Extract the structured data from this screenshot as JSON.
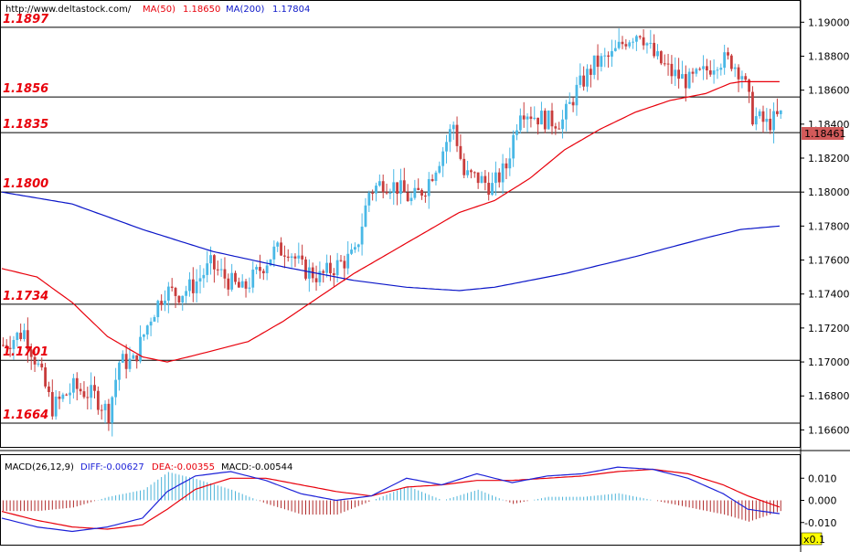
{
  "header": {
    "url": "http://www.deltastock.com/",
    "ma50_label": "MA(50)",
    "ma50_value": "1.18650",
    "ma200_label": "MA(200)",
    "ma200_value": "1.17804"
  },
  "macd_header": {
    "title": "MACD(26,12,9)",
    "diff": "DIFF:-0.00627",
    "dea": "DEA:-0.00355",
    "macd": "MACD:-0.00544",
    "scale_badge": "x0.1"
  },
  "colors": {
    "bull": "#49b8e6",
    "bear": "#c83c3c",
    "ma50": "#e8000b",
    "ma200": "#0b16c8",
    "level_text": "#e8000b",
    "diff": "#1d22d8",
    "dea": "#e8000b",
    "hist_pos": "#4ab3d9",
    "hist_neg": "#b02a2a",
    "price_box": "#d25a5a",
    "badge": "#ffff00"
  },
  "chart_data": {
    "type": "candlestick",
    "price_axis": {
      "ylim": [
        1.165,
        1.1912
      ],
      "ticks": [
        "1.16600",
        "1.16800",
        "1.17000",
        "1.17200",
        "1.17400",
        "1.17600",
        "1.17800",
        "1.18000",
        "1.18200",
        "1.18400",
        "1.18600",
        "1.18800",
        "1.19000"
      ]
    },
    "last_price": "1.18461",
    "levels": [
      {
        "label": "1.1897",
        "value": 1.1897
      },
      {
        "label": "1.1856",
        "value": 1.1856
      },
      {
        "label": "1.1835",
        "value": 1.1835
      },
      {
        "label": "1.1800",
        "value": 1.18
      },
      {
        "label": "1.1734",
        "value": 1.1734
      },
      {
        "label": "1.1701",
        "value": 1.1701
      },
      {
        "label": "1.1664",
        "value": 1.1664
      }
    ],
    "anchors": [
      [
        0,
        1.171
      ],
      [
        6,
        1.1718
      ],
      [
        10,
        1.1697
      ],
      [
        14,
        1.1673
      ],
      [
        20,
        1.1685
      ],
      [
        26,
        1.168
      ],
      [
        30,
        1.167
      ],
      [
        33,
        1.17
      ],
      [
        37,
        1.17
      ],
      [
        42,
        1.1727
      ],
      [
        46,
        1.1742
      ],
      [
        50,
        1.174
      ],
      [
        54,
        1.1745
      ],
      [
        59,
        1.1757
      ],
      [
        64,
        1.1748
      ],
      [
        68,
        1.1742
      ],
      [
        72,
        1.1752
      ],
      [
        77,
        1.1765
      ],
      [
        81,
        1.1767
      ],
      [
        85,
        1.1755
      ],
      [
        90,
        1.175
      ],
      [
        95,
        1.1757
      ],
      [
        100,
        1.1763
      ],
      [
        104,
        1.18
      ],
      [
        108,
        1.1806
      ],
      [
        112,
        1.1803
      ],
      [
        116,
        1.1795
      ],
      [
        120,
        1.1803
      ],
      [
        124,
        1.182
      ],
      [
        128,
        1.184
      ],
      [
        131,
        1.181
      ],
      [
        135,
        1.1808
      ],
      [
        139,
        1.1803
      ],
      [
        143,
        1.1815
      ],
      [
        147,
        1.185
      ],
      [
        151,
        1.1845
      ],
      [
        155,
        1.1842
      ],
      [
        159,
        1.1842
      ],
      [
        163,
        1.186
      ],
      [
        168,
        1.1875
      ],
      [
        173,
        1.188
      ],
      [
        177,
        1.189
      ],
      [
        181,
        1.1895
      ],
      [
        185,
        1.188
      ],
      [
        190,
        1.187
      ],
      [
        195,
        1.1865
      ],
      [
        199,
        1.187
      ],
      [
        203,
        1.1878
      ],
      [
        207,
        1.1877
      ],
      [
        210,
        1.187
      ],
      [
        213,
        1.1845
      ],
      [
        217,
        1.184
      ],
      [
        221,
        1.1845
      ]
    ],
    "ma50": [
      [
        0,
        1.1755
      ],
      [
        10,
        1.175
      ],
      [
        20,
        1.1735
      ],
      [
        30,
        1.1715
      ],
      [
        40,
        1.1703
      ],
      [
        47,
        1.17
      ],
      [
        55,
        1.1704
      ],
      [
        70,
        1.1712
      ],
      [
        80,
        1.1724
      ],
      [
        90,
        1.1738
      ],
      [
        100,
        1.1752
      ],
      [
        110,
        1.1764
      ],
      [
        120,
        1.1776
      ],
      [
        130,
        1.1788
      ],
      [
        140,
        1.1795
      ],
      [
        150,
        1.1808
      ],
      [
        160,
        1.1825
      ],
      [
        170,
        1.1837
      ],
      [
        180,
        1.1847
      ],
      [
        190,
        1.1854
      ],
      [
        200,
        1.1858
      ],
      [
        207,
        1.1864
      ],
      [
        210,
        1.1865
      ],
      [
        216,
        1.1865
      ],
      [
        221,
        1.1865
      ]
    ],
    "ma200": [
      [
        0,
        1.18
      ],
      [
        20,
        1.1793
      ],
      [
        40,
        1.1778
      ],
      [
        60,
        1.1765
      ],
      [
        80,
        1.1756
      ],
      [
        100,
        1.1748
      ],
      [
        115,
        1.1744
      ],
      [
        130,
        1.1742
      ],
      [
        140,
        1.1744
      ],
      [
        160,
        1.1752
      ],
      [
        180,
        1.1762
      ],
      [
        200,
        1.1773
      ],
      [
        210,
        1.1778
      ],
      [
        221,
        1.178
      ]
    ],
    "macd": {
      "ylim": [
        -0.02,
        0.02
      ],
      "ticks": [
        "0.010",
        "0.000",
        "-0.010"
      ],
      "diff": [
        [
          0,
          -0.008
        ],
        [
          10,
          -0.012
        ],
        [
          20,
          -0.014
        ],
        [
          30,
          -0.012
        ],
        [
          40,
          -0.008
        ],
        [
          47,
          0.004
        ],
        [
          55,
          0.011
        ],
        [
          65,
          0.013
        ],
        [
          75,
          0.009
        ],
        [
          85,
          0.003
        ],
        [
          95,
          0.0
        ],
        [
          105,
          0.002
        ],
        [
          115,
          0.01
        ],
        [
          125,
          0.007
        ],
        [
          135,
          0.012
        ],
        [
          145,
          0.008
        ],
        [
          155,
          0.011
        ],
        [
          165,
          0.012
        ],
        [
          175,
          0.015
        ],
        [
          185,
          0.014
        ],
        [
          195,
          0.01
        ],
        [
          205,
          0.003
        ],
        [
          212,
          -0.004
        ],
        [
          221,
          -0.006
        ]
      ],
      "dea": [
        [
          0,
          -0.005
        ],
        [
          10,
          -0.009
        ],
        [
          20,
          -0.012
        ],
        [
          30,
          -0.013
        ],
        [
          40,
          -0.011
        ],
        [
          47,
          -0.004
        ],
        [
          55,
          0.005
        ],
        [
          65,
          0.01
        ],
        [
          75,
          0.01
        ],
        [
          85,
          0.007
        ],
        [
          95,
          0.004
        ],
        [
          105,
          0.002
        ],
        [
          115,
          0.006
        ],
        [
          125,
          0.007
        ],
        [
          135,
          0.009
        ],
        [
          145,
          0.009
        ],
        [
          155,
          0.01
        ],
        [
          165,
          0.011
        ],
        [
          175,
          0.013
        ],
        [
          185,
          0.014
        ],
        [
          195,
          0.012
        ],
        [
          205,
          0.007
        ],
        [
          212,
          0.002
        ],
        [
          221,
          -0.003
        ]
      ]
    }
  }
}
